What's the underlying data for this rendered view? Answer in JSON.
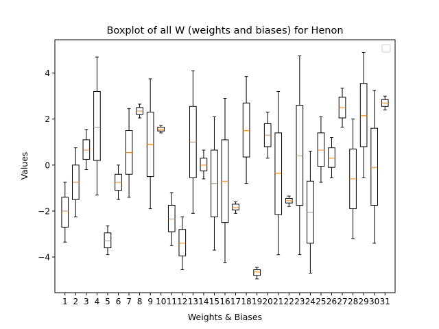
{
  "chart_data": {
    "type": "boxplot",
    "title": "Boxplot of all W (weights and biases) for Henon",
    "xlabel": "Weights & Biases",
    "ylabel": "Values",
    "ylim": [
      -5.55,
      5.45
    ],
    "yticks": [
      -4,
      -2,
      0,
      2,
      4
    ],
    "grid": false,
    "legend": "top-right, empty",
    "colors": {
      "box": "#000000",
      "median": "#ff7f0e",
      "background": "#ffffff"
    },
    "categories": [
      "1",
      "2",
      "3",
      "4",
      "5",
      "6",
      "7",
      "8",
      "9",
      "10",
      "11",
      "12",
      "13",
      "14",
      "15",
      "16",
      "17",
      "18",
      "19",
      "20",
      "21",
      "22",
      "23",
      "24",
      "25",
      "26",
      "27",
      "28",
      "29",
      "30",
      "31"
    ],
    "boxes": [
      {
        "label": "1",
        "whislo": -3.35,
        "q1": -2.7,
        "med": -2.0,
        "q3": -1.4,
        "whishi": -0.75
      },
      {
        "label": "2",
        "whislo": -2.25,
        "q1": -1.5,
        "med": -0.75,
        "q3": 0.0,
        "whishi": 0.75
      },
      {
        "label": "3",
        "whislo": -0.2,
        "q1": 0.25,
        "med": 0.65,
        "q3": 1.1,
        "whishi": 1.55
      },
      {
        "label": "4",
        "whislo": -1.3,
        "q1": 0.2,
        "med": 1.65,
        "q3": 3.2,
        "whishi": 4.7
      },
      {
        "label": "5",
        "whislo": -3.9,
        "q1": -3.6,
        "med": -3.3,
        "q3": -2.95,
        "whishi": -2.65
      },
      {
        "label": "6",
        "whislo": -1.5,
        "q1": -1.1,
        "med": -0.75,
        "q3": -0.4,
        "whishi": 0.0
      },
      {
        "label": "7",
        "whislo": -1.4,
        "q1": -0.4,
        "med": 0.55,
        "q3": 1.5,
        "whishi": 2.45
      },
      {
        "label": "8",
        "whislo": 2.05,
        "q1": 2.2,
        "med": 2.35,
        "q3": 2.5,
        "whishi": 2.65
      },
      {
        "label": "9",
        "whislo": -1.9,
        "q1": -0.5,
        "med": 0.9,
        "q3": 2.3,
        "whishi": 3.75
      },
      {
        "label": "10",
        "whislo": 1.4,
        "q1": 1.48,
        "med": 1.55,
        "q3": 1.65,
        "whishi": 1.72
      },
      {
        "label": "11",
        "whislo": -3.5,
        "q1": -2.9,
        "med": -2.35,
        "q3": -1.75,
        "whishi": -1.2
      },
      {
        "label": "12",
        "whislo": -4.55,
        "q1": -3.95,
        "med": -3.4,
        "q3": -2.8,
        "whishi": -2.25
      },
      {
        "label": "13",
        "whislo": -2.1,
        "q1": -0.55,
        "med": 1.0,
        "q3": 2.55,
        "whishi": 4.1
      },
      {
        "label": "14",
        "whislo": -0.6,
        "q1": -0.25,
        "med": 0.0,
        "q3": 0.3,
        "whishi": 0.65
      },
      {
        "label": "15",
        "whislo": -3.7,
        "q1": -2.25,
        "med": -0.8,
        "q3": 0.65,
        "whishi": 2.1
      },
      {
        "label": "16",
        "whislo": -4.25,
        "q1": -2.5,
        "med": -0.7,
        "q3": 1.1,
        "whishi": 2.9
      },
      {
        "label": "17",
        "whislo": -2.1,
        "q1": -1.95,
        "med": -1.85,
        "q3": -1.7,
        "whishi": -1.6
      },
      {
        "label": "18",
        "whislo": -0.8,
        "q1": 0.35,
        "med": 1.5,
        "q3": 2.7,
        "whishi": 3.85
      },
      {
        "label": "19",
        "whislo": -4.95,
        "q1": -4.8,
        "med": -4.65,
        "q3": -4.55,
        "whishi": -4.45
      },
      {
        "label": "20",
        "whislo": 0.3,
        "q1": 0.8,
        "med": 1.3,
        "q3": 1.8,
        "whishi": 2.3
      },
      {
        "label": "21",
        "whislo": -3.9,
        "q1": -2.15,
        "med": -0.35,
        "q3": 1.4,
        "whishi": 3.2
      },
      {
        "label": "22",
        "whislo": -1.8,
        "q1": -1.65,
        "med": -1.55,
        "q3": -1.45,
        "whishi": -1.35
      },
      {
        "label": "23",
        "whislo": -3.9,
        "q1": -1.75,
        "med": 0.4,
        "q3": 2.6,
        "whishi": 4.75
      },
      {
        "label": "24",
        "whislo": -4.7,
        "q1": -3.4,
        "med": -2.05,
        "q3": -0.7,
        "whishi": 0.6
      },
      {
        "label": "25",
        "whislo": -0.75,
        "q1": -0.05,
        "med": 0.65,
        "q3": 1.4,
        "whishi": 2.1
      },
      {
        "label": "26",
        "whislo": -0.55,
        "q1": -0.1,
        "med": 0.3,
        "q3": 0.75,
        "whishi": 1.2
      },
      {
        "label": "27",
        "whislo": 1.65,
        "q1": 2.05,
        "med": 2.5,
        "q3": 2.95,
        "whishi": 3.35
      },
      {
        "label": "28",
        "whislo": -3.2,
        "q1": -1.9,
        "med": -0.6,
        "q3": 0.7,
        "whishi": 2.0
      },
      {
        "label": "29",
        "whislo": -0.55,
        "q1": 0.8,
        "med": 2.15,
        "q3": 3.55,
        "whishi": 4.9
      },
      {
        "label": "30",
        "whislo": -3.4,
        "q1": -1.75,
        "med": -0.1,
        "q3": 1.6,
        "whishi": 3.25
      },
      {
        "label": "31",
        "whislo": 2.4,
        "q1": 2.55,
        "med": 2.7,
        "q3": 2.85,
        "whishi": 3.0
      }
    ]
  }
}
